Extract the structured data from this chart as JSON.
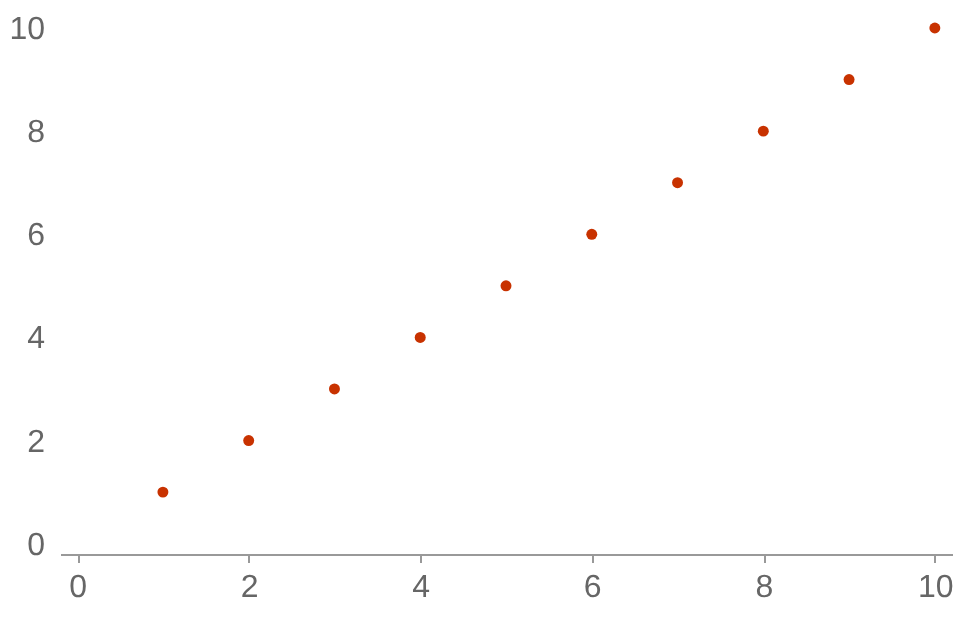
{
  "chart_data": {
    "type": "scatter",
    "x": [
      1,
      2,
      3,
      4,
      5,
      6,
      7,
      8,
      9,
      10
    ],
    "series": [
      {
        "color": "#c83200",
        "values": [
          1,
          2,
          3,
          4,
          5,
          6,
          7,
          8,
          9,
          10
        ]
      }
    ],
    "xlim": [
      -0.2,
      10.2
    ],
    "ylim": [
      -0.2,
      10
    ],
    "xticks": [
      0,
      2,
      4,
      6,
      8,
      10
    ],
    "yticks": [
      0,
      2,
      4,
      6,
      8,
      10
    ],
    "grid": false,
    "marker": "circle"
  }
}
